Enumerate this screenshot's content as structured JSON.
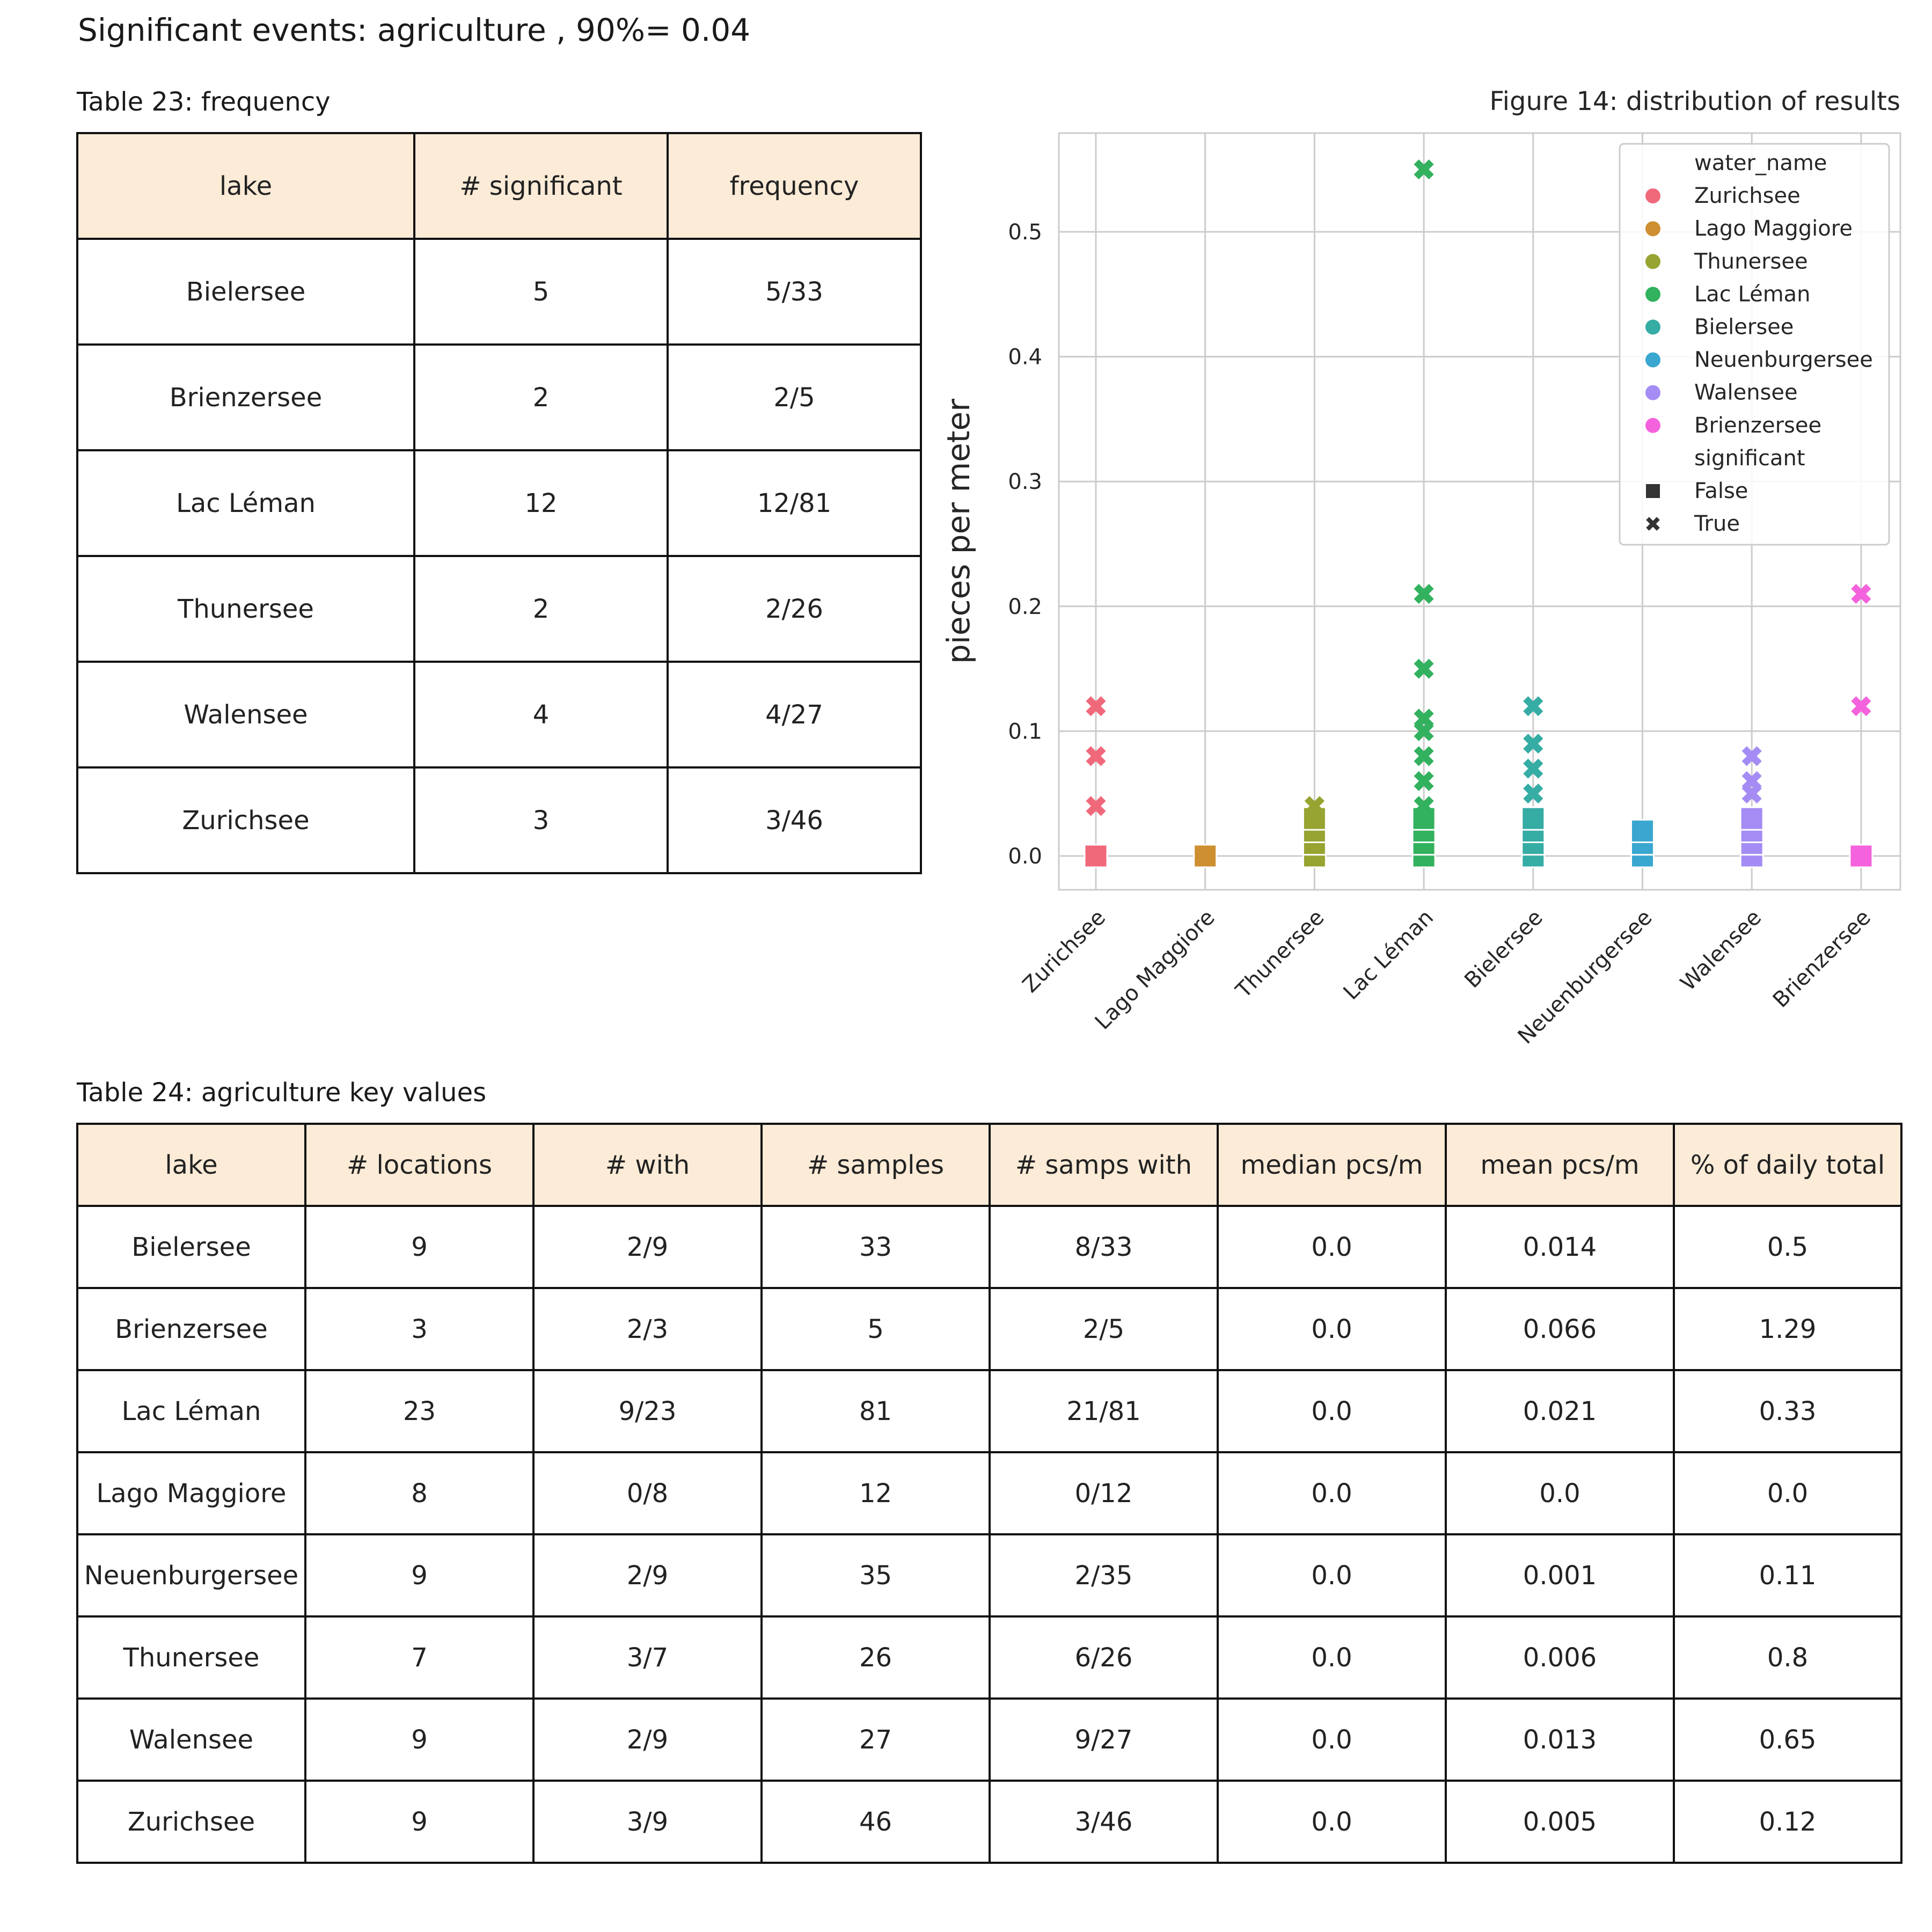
{
  "page_title": "Significant events: agriculture , 90%= 0.04",
  "table23": {
    "caption": "Table 23: frequency",
    "columns": [
      "lake",
      "# significant",
      "frequency"
    ],
    "rows": [
      [
        "Bielersee",
        "5",
        "5/33"
      ],
      [
        "Brienzersee",
        "2",
        "2/5"
      ],
      [
        "Lac Léman",
        "12",
        "12/81"
      ],
      [
        "Thunersee",
        "2",
        "2/26"
      ],
      [
        "Walensee",
        "4",
        "4/27"
      ],
      [
        "Zurichsee",
        "3",
        "3/46"
      ]
    ]
  },
  "table24": {
    "caption": "Table 24: agriculture key values",
    "columns": [
      "lake",
      "# locations",
      "# with",
      "# samples",
      "# samps with",
      "median pcs/m",
      "mean pcs/m",
      "% of daily total"
    ],
    "rows": [
      [
        "Bielersee",
        "9",
        "2/9",
        "33",
        "8/33",
        "0.0",
        "0.014",
        "0.5"
      ],
      [
        "Brienzersee",
        "3",
        "2/3",
        "5",
        "2/5",
        "0.0",
        "0.066",
        "1.29"
      ],
      [
        "Lac Léman",
        "23",
        "9/23",
        "81",
        "21/81",
        "0.0",
        "0.021",
        "0.33"
      ],
      [
        "Lago Maggiore",
        "8",
        "0/8",
        "12",
        "0/12",
        "0.0",
        "0.0",
        "0.0"
      ],
      [
        "Neuenburgersee",
        "9",
        "2/9",
        "35",
        "2/35",
        "0.0",
        "0.001",
        "0.11"
      ],
      [
        "Thunersee",
        "7",
        "3/7",
        "26",
        "6/26",
        "0.0",
        "0.006",
        "0.8"
      ],
      [
        "Walensee",
        "9",
        "2/9",
        "27",
        "9/27",
        "0.0",
        "0.013",
        "0.65"
      ],
      [
        "Zurichsee",
        "9",
        "3/9",
        "46",
        "3/46",
        "0.0",
        "0.005",
        "0.12"
      ]
    ]
  },
  "chart_data": {
    "type": "scatter",
    "title": "Figure 14: distribution of results",
    "xlabel": "",
    "ylabel": "pieces per meter",
    "categories": [
      "Zurichsee",
      "Lago Maggiore",
      "Thunersee",
      "Lac Léman",
      "Bielersee",
      "Neuenburgersee",
      "Walensee",
      "Brienzersee"
    ],
    "ylim": [
      -0.027,
      0.58
    ],
    "yticks": [
      "0.0",
      "0.1",
      "0.2",
      "0.3",
      "0.4",
      "0.5"
    ],
    "grid": true,
    "legend_placement": "top-right",
    "legend": {
      "hue_title": "water_name",
      "hue_entries": [
        "Zurichsee",
        "Lago Maggiore",
        "Thunersee",
        "Lac Léman",
        "Bielersee",
        "Neuenburgersee",
        "Walensee",
        "Brienzersee"
      ],
      "style_title": "significant",
      "style_entries": [
        "False",
        "True"
      ]
    },
    "colors": {
      "Zurichsee": "#f0697b",
      "Lago Maggiore": "#ce8f31",
      "Thunersee": "#97a431",
      "Lac Léman": "#32b15e",
      "Bielersee": "#35aca4",
      "Neuenburgersee": "#39a7d0",
      "Walensee": "#a48cf4",
      "Brienzersee": "#f562dd"
    },
    "series": [
      {
        "name": "Zurichsee",
        "false": [
          0.0
        ],
        "true": [
          0.04,
          0.08,
          0.12
        ]
      },
      {
        "name": "Lago Maggiore",
        "false": [
          0.0
        ],
        "true": []
      },
      {
        "name": "Thunersee",
        "false": [
          0.0,
          0.01,
          0.02,
          0.03
        ],
        "true": [
          0.04
        ]
      },
      {
        "name": "Lac Léman",
        "false": [
          0.0,
          0.01,
          0.02,
          0.03
        ],
        "true": [
          0.04,
          0.06,
          0.08,
          0.1,
          0.11,
          0.15,
          0.21,
          0.55
        ]
      },
      {
        "name": "Bielersee",
        "false": [
          0.0,
          0.01,
          0.02,
          0.03
        ],
        "true": [
          0.05,
          0.07,
          0.09,
          0.12
        ]
      },
      {
        "name": "Neuenburgersee",
        "false": [
          0.0,
          0.01,
          0.02
        ],
        "true": []
      },
      {
        "name": "Walensee",
        "false": [
          0.0,
          0.01,
          0.02,
          0.03
        ],
        "true": [
          0.05,
          0.06,
          0.08
        ]
      },
      {
        "name": "Brienzersee",
        "false": [
          0.0
        ],
        "true": [
          0.12,
          0.21
        ]
      }
    ]
  }
}
